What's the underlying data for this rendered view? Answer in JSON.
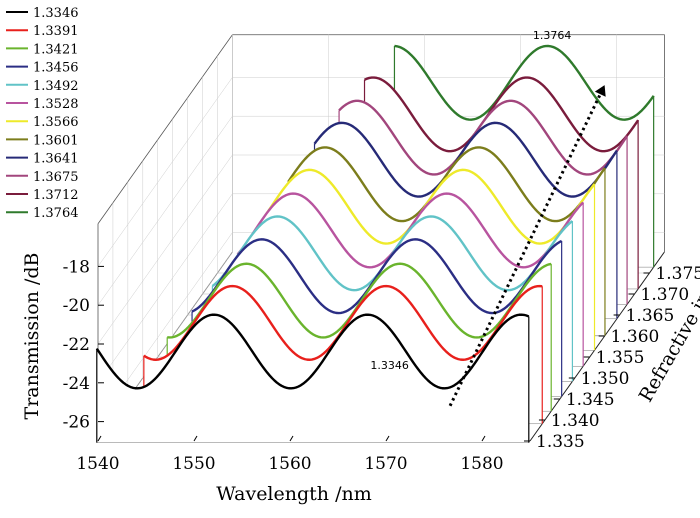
{
  "chart_data": {
    "type": "line",
    "xlabel": "Wavelength /nm",
    "ylabel": "Transmission /dB",
    "zlabel": "Refractive index",
    "xlim": [
      1540,
      1585
    ],
    "ylim": [
      -27,
      -17
    ],
    "zlim": [
      1.335,
      1.3764
    ],
    "x_ticks": [
      "1540",
      "1550",
      "1560",
      "1570",
      "1580"
    ],
    "y_ticks": [
      "-18",
      "-20",
      "-22",
      "-24",
      "-26"
    ],
    "z_ticks": [
      "1.335",
      "1.340",
      "1.345",
      "1.350",
      "1.355",
      "1.360",
      "1.365",
      "1.370",
      "1.375"
    ],
    "grid": true,
    "legend_position": "top-left",
    "trend_arrow": "dotted, pointing toward higher refractive index",
    "annotations": [
      {
        "text": "1.3346",
        "series": "1.3346"
      },
      {
        "text": "1.3764",
        "series": "1.3764"
      }
    ],
    "curve_model": {
      "description": "approximate transmission spectra: periodic interference fringes",
      "period_nm": 16,
      "amplitude_dB": 1.9,
      "first_dip_nm": 1544.2,
      "dip_shift_nm_per_series": 0.52
    },
    "series": [
      {
        "name": "1.3346",
        "refractive_index": 1.3346,
        "color": "#000000",
        "mean_dB": -22.3,
        "start_nm": 1540
      },
      {
        "name": "1.3391",
        "refractive_index": 1.3391,
        "color": "#e8201c",
        "mean_dB": -21.8,
        "start_nm": 1543.5
      },
      {
        "name": "1.3421",
        "refractive_index": 1.3421,
        "color": "#6ab42d",
        "mean_dB": -21.3,
        "start_nm": 1545
      },
      {
        "name": "1.3456",
        "refractive_index": 1.3456,
        "color": "#2b2e84",
        "mean_dB": -20.8,
        "start_nm": 1546.5
      },
      {
        "name": "1.3492",
        "refractive_index": 1.3492,
        "color": "#61c3c7",
        "mean_dB": -20.4,
        "start_nm": 1547.5
      },
      {
        "name": "1.3528",
        "refractive_index": 1.3528,
        "color": "#b8549f",
        "mean_dB": -20.0,
        "start_nm": 1549
      },
      {
        "name": "1.3566",
        "refractive_index": 1.3566,
        "color": "#eeea2a",
        "mean_dB": -19.6,
        "start_nm": 1550.5
      },
      {
        "name": "1.3601",
        "refractive_index": 1.3601,
        "color": "#7c7d1c",
        "mean_dB": -19.2,
        "start_nm": 1552
      },
      {
        "name": "1.3641",
        "refractive_index": 1.3641,
        "color": "#262a77",
        "mean_dB": -18.8,
        "start_nm": 1553.5
      },
      {
        "name": "1.3675",
        "refractive_index": 1.3675,
        "color": "#a2467d",
        "mean_dB": -18.4,
        "start_nm": 1555
      },
      {
        "name": "1.3712",
        "refractive_index": 1.3712,
        "color": "#7a1c3c",
        "mean_dB": -18.0,
        "start_nm": 1556.5
      },
      {
        "name": "1.3764",
        "refractive_index": 1.3764,
        "color": "#2f7a2c",
        "mean_dB": -17.5,
        "start_nm": 1558
      }
    ]
  }
}
